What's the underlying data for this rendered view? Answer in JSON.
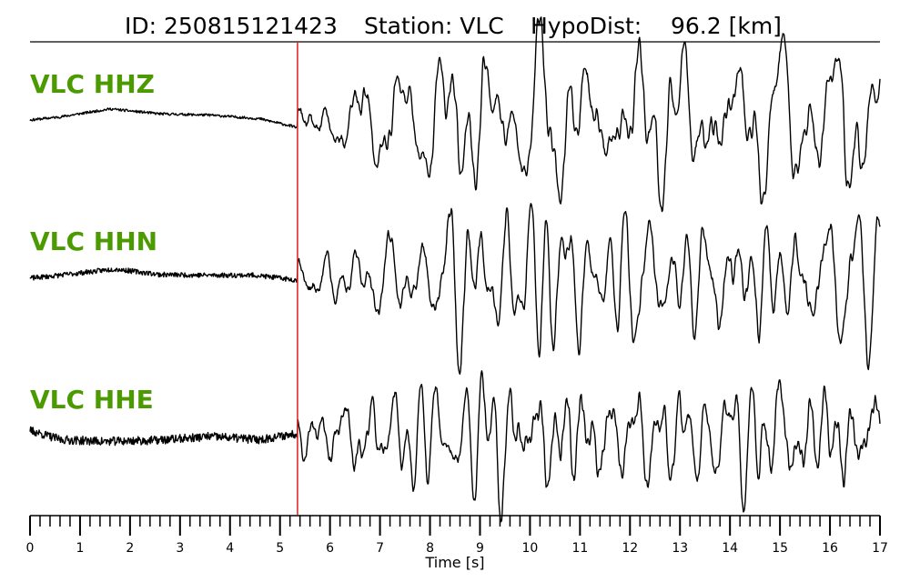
{
  "title": {
    "event_id": "ID: 250815121423",
    "station": "Station: VLC",
    "hypodist": "HypoDist:    96.2 [km]"
  },
  "colors": {
    "label": "#4a9a00",
    "trace": "#000000",
    "pick": "#e0201a"
  },
  "chart_data": {
    "type": "line",
    "xlabel": "Time [s]",
    "xlim": [
      0,
      17
    ],
    "major_ticks": [
      0,
      1,
      2,
      3,
      4,
      5,
      6,
      7,
      8,
      9,
      10,
      11,
      12,
      13,
      14,
      15,
      16,
      17
    ],
    "minor_tick_step": 0.2,
    "pick_time": 5.35,
    "series": [
      {
        "name": "VLC HHZ",
        "onset": 5.35,
        "baseline": [
          [
            0,
            0
          ],
          [
            0.6,
            0.05
          ],
          [
            1.6,
            0.18
          ],
          [
            2.6,
            0.1
          ],
          [
            3.6,
            0.08
          ],
          [
            4.6,
            0.02
          ],
          [
            5.35,
            -0.12
          ]
        ],
        "noise": 0.02,
        "amp": 1.0,
        "seed": 11
      },
      {
        "name": "VLC HHN",
        "onset": 5.35,
        "baseline": [
          [
            0,
            0
          ],
          [
            0.6,
            0.05
          ],
          [
            1.7,
            0.15
          ],
          [
            2.6,
            0.06
          ],
          [
            3.5,
            0.05
          ],
          [
            4.5,
            0.05
          ],
          [
            5.35,
            -0.03
          ]
        ],
        "noise": 0.04,
        "amp": 1.0,
        "seed": 23
      },
      {
        "name": "VLC HHE",
        "onset": 5.35,
        "baseline": [
          [
            0,
            0.1
          ],
          [
            0.6,
            -0.05
          ],
          [
            1.5,
            -0.08
          ],
          [
            2.6,
            -0.06
          ],
          [
            3.6,
            0.0
          ],
          [
            4.6,
            -0.05
          ],
          [
            5.35,
            0.05
          ]
        ],
        "noise": 0.07,
        "amp": 1.0,
        "seed": 37
      }
    ]
  }
}
